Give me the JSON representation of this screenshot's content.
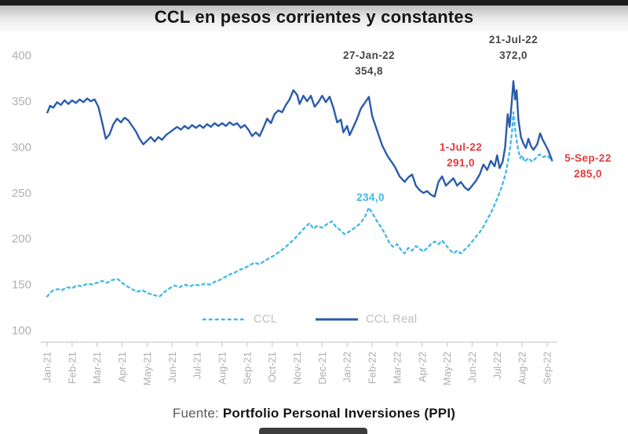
{
  "title": "CCL en pesos corrientes y constantes",
  "footer": {
    "prefix": "Fuente:",
    "source": "Portfolio Personal Inversiones (PPI)"
  },
  "colors": {
    "ccl_line": "#3fb8e8",
    "ccl_real_line": "#2a5caa",
    "red_annotation": "#e23d3d",
    "dark_annotation": "#454545",
    "axis_label_gray": "#aeaeae"
  },
  "chart_data": {
    "type": "line",
    "title": "CCL en pesos corrientes y constantes",
    "xlabel": "",
    "ylabel": "",
    "grid": false,
    "legend_position": "bottom",
    "y_ticks": [
      100,
      150,
      200,
      250,
      300,
      350,
      400
    ],
    "y_range": [
      100,
      400
    ],
    "x_labels": [
      "Jan-21",
      "Feb-21",
      "Mar-21",
      "Apr-21",
      "May-21",
      "Jun-21",
      "Jul-21",
      "Aug-21",
      "Sep-21",
      "Oct-21",
      "Nov-21",
      "Dec-21",
      "Jan-22",
      "Feb-22",
      "Mar-22",
      "Apr-22",
      "May-22",
      "Jun-22",
      "Jul-22",
      "Aug-22",
      "Sep-22"
    ],
    "annotations": {
      "jan_peak": {
        "date": "27-Jan-22",
        "value": "354,8",
        "color": "#454545"
      },
      "jul_peak": {
        "date": "21-Jul-22",
        "value": "372,0",
        "color": "#454545"
      },
      "jul_start": {
        "date": "1-Jul-22",
        "value": "291,0",
        "color": "#e23d3d"
      },
      "sep_last": {
        "date": "5-Sep-22",
        "value": "285,0",
        "color": "#e23d3d"
      },
      "ccl_peak": {
        "value": "234,0",
        "color": "#3fb8e8"
      }
    },
    "series": [
      {
        "name": "CCL",
        "color": "#3fb8e8",
        "style": "dashed",
        "points": [
          [
            0,
            137
          ],
          [
            0.2,
            143
          ],
          [
            0.4,
            145
          ],
          [
            0.6,
            144
          ],
          [
            0.8,
            147
          ],
          [
            1,
            146
          ],
          [
            1.2,
            149
          ],
          [
            1.4,
            148
          ],
          [
            1.6,
            151
          ],
          [
            1.8,
            150
          ],
          [
            2,
            152
          ],
          [
            2.2,
            154
          ],
          [
            2.4,
            152
          ],
          [
            2.6,
            155
          ],
          [
            2.83,
            156
          ],
          [
            3,
            152
          ],
          [
            3.2,
            148
          ],
          [
            3.4,
            145
          ],
          [
            3.6,
            142
          ],
          [
            3.8,
            144
          ],
          [
            4,
            141
          ],
          [
            4.2,
            139
          ],
          [
            4.5,
            137
          ],
          [
            4.7,
            142
          ],
          [
            4.9,
            146
          ],
          [
            5.1,
            149
          ],
          [
            5.3,
            147
          ],
          [
            5.5,
            150
          ],
          [
            5.7,
            148
          ],
          [
            5.9,
            150
          ],
          [
            6.1,
            149
          ],
          [
            6.3,
            151
          ],
          [
            6.5,
            150
          ],
          [
            6.7,
            153
          ],
          [
            6.9,
            155
          ],
          [
            7.1,
            158
          ],
          [
            7.3,
            161
          ],
          [
            7.5,
            163
          ],
          [
            7.7,
            166
          ],
          [
            7.9,
            168
          ],
          [
            8.1,
            171
          ],
          [
            8.3,
            174
          ],
          [
            8.5,
            172
          ],
          [
            8.7,
            176
          ],
          [
            8.9,
            179
          ],
          [
            9.1,
            182
          ],
          [
            9.3,
            186
          ],
          [
            9.5,
            190
          ],
          [
            9.7,
            195
          ],
          [
            9.9,
            200
          ],
          [
            10.1,
            206
          ],
          [
            10.3,
            212
          ],
          [
            10.5,
            217
          ],
          [
            10.65,
            211
          ],
          [
            10.8,
            214
          ],
          [
            11,
            212
          ],
          [
            11.2,
            216
          ],
          [
            11.4,
            219
          ],
          [
            11.55,
            213
          ],
          [
            11.7,
            210
          ],
          [
            11.9,
            205
          ],
          [
            12.1,
            208
          ],
          [
            12.3,
            212
          ],
          [
            12.5,
            216
          ],
          [
            12.7,
            223
          ],
          [
            12.87,
            234
          ],
          [
            13.05,
            226
          ],
          [
            13.2,
            219
          ],
          [
            13.35,
            213
          ],
          [
            13.5,
            206
          ],
          [
            13.7,
            195
          ],
          [
            13.85,
            191
          ],
          [
            14,
            194
          ],
          [
            14.15,
            188
          ],
          [
            14.3,
            184
          ],
          [
            14.45,
            190
          ],
          [
            14.6,
            187
          ],
          [
            14.75,
            192
          ],
          [
            14.9,
            189
          ],
          [
            15.05,
            186
          ],
          [
            15.2,
            190
          ],
          [
            15.35,
            194
          ],
          [
            15.5,
            197
          ],
          [
            15.65,
            194
          ],
          [
            15.8,
            198
          ],
          [
            15.95,
            193
          ],
          [
            16.1,
            188
          ],
          [
            16.25,
            184
          ],
          [
            16.4,
            187
          ],
          [
            16.55,
            184
          ],
          [
            16.7,
            188
          ],
          [
            16.85,
            192
          ],
          [
            17,
            197
          ],
          [
            17.15,
            202
          ],
          [
            17.3,
            207
          ],
          [
            17.45,
            213
          ],
          [
            17.6,
            221
          ],
          [
            17.75,
            228
          ],
          [
            17.9,
            237
          ],
          [
            18.05,
            247
          ],
          [
            18.2,
            258
          ],
          [
            18.35,
            272
          ],
          [
            18.5,
            295
          ],
          [
            18.6,
            318
          ],
          [
            18.65,
            338
          ],
          [
            18.73,
            316
          ],
          [
            18.82,
            300
          ],
          [
            18.92,
            288
          ],
          [
            19,
            291
          ],
          [
            19.1,
            284
          ],
          [
            19.25,
            288
          ],
          [
            19.4,
            284
          ],
          [
            19.55,
            288
          ],
          [
            19.7,
            292
          ],
          [
            19.85,
            289
          ],
          [
            20,
            291
          ],
          [
            20.1,
            288
          ],
          [
            20.2,
            285
          ]
        ]
      },
      {
        "name": "CCL Real",
        "color": "#2a5caa",
        "style": "solid",
        "points": [
          [
            0,
            337
          ],
          [
            0.12,
            345
          ],
          [
            0.25,
            343
          ],
          [
            0.4,
            349
          ],
          [
            0.55,
            346
          ],
          [
            0.7,
            351
          ],
          [
            0.85,
            347
          ],
          [
            1,
            351
          ],
          [
            1.15,
            348
          ],
          [
            1.3,
            352
          ],
          [
            1.45,
            349
          ],
          [
            1.6,
            353
          ],
          [
            1.75,
            350
          ],
          [
            1.9,
            352
          ],
          [
            2.05,
            344
          ],
          [
            2.2,
            327
          ],
          [
            2.35,
            309
          ],
          [
            2.5,
            314
          ],
          [
            2.65,
            325
          ],
          [
            2.8,
            331
          ],
          [
            2.95,
            327
          ],
          [
            3.1,
            332
          ],
          [
            3.25,
            329
          ],
          [
            3.4,
            323
          ],
          [
            3.55,
            317
          ],
          [
            3.7,
            309
          ],
          [
            3.85,
            303
          ],
          [
            4,
            307
          ],
          [
            4.15,
            311
          ],
          [
            4.3,
            306
          ],
          [
            4.45,
            311
          ],
          [
            4.6,
            308
          ],
          [
            4.75,
            313
          ],
          [
            4.9,
            316
          ],
          [
            5.05,
            319
          ],
          [
            5.2,
            322
          ],
          [
            5.35,
            319
          ],
          [
            5.5,
            323
          ],
          [
            5.65,
            320
          ],
          [
            5.8,
            324
          ],
          [
            5.95,
            321
          ],
          [
            6.1,
            324
          ],
          [
            6.25,
            321
          ],
          [
            6.4,
            325
          ],
          [
            6.55,
            322
          ],
          [
            6.7,
            326
          ],
          [
            6.85,
            323
          ],
          [
            7,
            326
          ],
          [
            7.15,
            323
          ],
          [
            7.3,
            327
          ],
          [
            7.45,
            324
          ],
          [
            7.6,
            326
          ],
          [
            7.75,
            321
          ],
          [
            7.9,
            324
          ],
          [
            8.05,
            319
          ],
          [
            8.2,
            312
          ],
          [
            8.35,
            316
          ],
          [
            8.5,
            312
          ],
          [
            8.65,
            321
          ],
          [
            8.8,
            331
          ],
          [
            8.95,
            326
          ],
          [
            9.1,
            336
          ],
          [
            9.25,
            340
          ],
          [
            9.4,
            338
          ],
          [
            9.55,
            346
          ],
          [
            9.7,
            352
          ],
          [
            9.85,
            362
          ],
          [
            10,
            357
          ],
          [
            10.1,
            347
          ],
          [
            10.25,
            356
          ],
          [
            10.4,
            350
          ],
          [
            10.55,
            356
          ],
          [
            10.7,
            344
          ],
          [
            10.85,
            349
          ],
          [
            11,
            356
          ],
          [
            11.15,
            349
          ],
          [
            11.3,
            355
          ],
          [
            11.45,
            343
          ],
          [
            11.6,
            327
          ],
          [
            11.75,
            330
          ],
          [
            11.85,
            316
          ],
          [
            12,
            323
          ],
          [
            12.1,
            313
          ],
          [
            12.25,
            322
          ],
          [
            12.4,
            331
          ],
          [
            12.55,
            342
          ],
          [
            12.7,
            348
          ],
          [
            12.87,
            354.8
          ],
          [
            13,
            334
          ],
          [
            13.2,
            318
          ],
          [
            13.4,
            302
          ],
          [
            13.6,
            291
          ],
          [
            13.75,
            285
          ],
          [
            13.9,
            279
          ],
          [
            14.1,
            268
          ],
          [
            14.3,
            262
          ],
          [
            14.45,
            267
          ],
          [
            14.6,
            270
          ],
          [
            14.75,
            258
          ],
          [
            14.9,
            253
          ],
          [
            15.05,
            250
          ],
          [
            15.2,
            252
          ],
          [
            15.35,
            248
          ],
          [
            15.5,
            246
          ],
          [
            15.65,
            262
          ],
          [
            15.8,
            268
          ],
          [
            15.95,
            258
          ],
          [
            16.1,
            262
          ],
          [
            16.25,
            266
          ],
          [
            16.4,
            258
          ],
          [
            16.55,
            262
          ],
          [
            16.7,
            256
          ],
          [
            16.85,
            253
          ],
          [
            17,
            258
          ],
          [
            17.15,
            263
          ],
          [
            17.3,
            270
          ],
          [
            17.45,
            281
          ],
          [
            17.6,
            275
          ],
          [
            17.75,
            285
          ],
          [
            17.9,
            279
          ],
          [
            18,
            291
          ],
          [
            18.1,
            277
          ],
          [
            18.22,
            284
          ],
          [
            18.32,
            300
          ],
          [
            18.42,
            336
          ],
          [
            18.5,
            322
          ],
          [
            18.58,
            348
          ],
          [
            18.65,
            372
          ],
          [
            18.72,
            352
          ],
          [
            18.78,
            362
          ],
          [
            18.85,
            330
          ],
          [
            18.95,
            311
          ],
          [
            19.05,
            304
          ],
          [
            19.15,
            299
          ],
          [
            19.25,
            309
          ],
          [
            19.35,
            301
          ],
          [
            19.45,
            297
          ],
          [
            19.6,
            303
          ],
          [
            19.72,
            315
          ],
          [
            19.82,
            308
          ],
          [
            19.92,
            303
          ],
          [
            20.05,
            296
          ],
          [
            20.2,
            285
          ]
        ]
      }
    ]
  }
}
